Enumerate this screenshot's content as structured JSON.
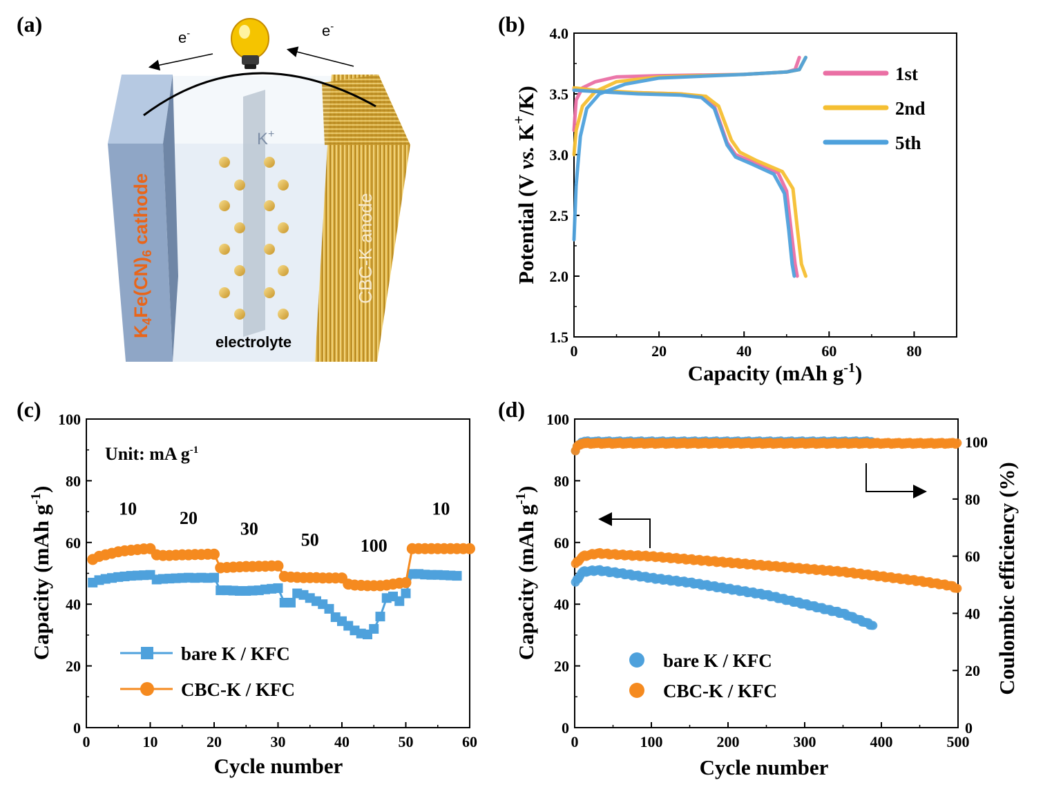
{
  "panel_labels": {
    "a": "(a)",
    "b": "(b)",
    "c": "(c)",
    "d": "(d)"
  },
  "schematic": {
    "electron_left": "e",
    "electron_right": "e",
    "electron_sup": "-",
    "ion_label": "K",
    "ion_sup": "+",
    "cathode_label": "K4Fe(CN)6 cathode",
    "anode_label": "CBC-K anode",
    "electrolyte_label": "electrolyte",
    "colors": {
      "cathode": "#8fa6c6",
      "anode": "#c99a2c",
      "ion": "#e0b64e",
      "label_orange": "#e8651a",
      "bulb": "#f5c400"
    }
  },
  "chart_data": [
    {
      "id": "b",
      "type": "line",
      "xlabel": "Capacity (mAh g-1)",
      "ylabel": "Potential (V vs. K+/K)",
      "xlim": [
        0,
        90
      ],
      "ylim": [
        1.5,
        4.0
      ],
      "xticks": [
        "0",
        "20",
        "40",
        "60",
        "80"
      ],
      "yticks": [
        "1.5",
        "2.0",
        "2.5",
        "3.0",
        "3.5",
        "4.0"
      ],
      "legend": "top-right",
      "series": [
        {
          "name": "1st",
          "color": "#ea6fa4",
          "charge": [
            [
              0,
              3.2
            ],
            [
              0.5,
              3.45
            ],
            [
              2,
              3.55
            ],
            [
              5,
              3.6
            ],
            [
              10,
              3.64
            ],
            [
              20,
              3.65
            ],
            [
              40,
              3.66
            ],
            [
              50,
              3.68
            ],
            [
              52,
              3.7
            ],
            [
              53,
              3.8
            ]
          ],
          "discharge": [
            [
              0,
              3.54
            ],
            [
              5,
              3.52
            ],
            [
              15,
              3.51
            ],
            [
              25,
              3.5
            ],
            [
              30,
              3.48
            ],
            [
              33,
              3.4
            ],
            [
              36,
              3.1
            ],
            [
              38,
              3.0
            ],
            [
              42,
              2.94
            ],
            [
              48,
              2.85
            ],
            [
              50,
              2.7
            ],
            [
              51,
              2.4
            ],
            [
              52,
              2.1
            ],
            [
              52.5,
              2.0
            ]
          ]
        },
        {
          "name": "2nd",
          "color": "#f5bf32",
          "charge": [
            [
              0,
              3.0
            ],
            [
              0.5,
              3.2
            ],
            [
              2,
              3.4
            ],
            [
              5,
              3.52
            ],
            [
              10,
              3.6
            ],
            [
              20,
              3.64
            ],
            [
              40,
              3.66
            ],
            [
              50,
              3.68
            ],
            [
              53,
              3.7
            ],
            [
              54.5,
              3.8
            ]
          ],
          "discharge": [
            [
              0,
              3.55
            ],
            [
              5,
              3.53
            ],
            [
              15,
              3.51
            ],
            [
              25,
              3.5
            ],
            [
              31,
              3.48
            ],
            [
              34,
              3.4
            ],
            [
              37,
              3.12
            ],
            [
              39,
              3.02
            ],
            [
              43,
              2.95
            ],
            [
              49,
              2.86
            ],
            [
              51.5,
              2.72
            ],
            [
              52.5,
              2.4
            ],
            [
              53.5,
              2.1
            ],
            [
              54.5,
              2.0
            ]
          ]
        },
        {
          "name": "5th",
          "color": "#4ea1dc",
          "charge": [
            [
              0,
              2.3
            ],
            [
              0.5,
              2.75
            ],
            [
              1.5,
              3.15
            ],
            [
              3,
              3.38
            ],
            [
              6,
              3.5
            ],
            [
              12,
              3.58
            ],
            [
              20,
              3.63
            ],
            [
              40,
              3.66
            ],
            [
              50,
              3.68
            ],
            [
              53,
              3.7
            ],
            [
              54.5,
              3.8
            ]
          ],
          "discharge": [
            [
              0,
              3.53
            ],
            [
              5,
              3.52
            ],
            [
              15,
              3.5
            ],
            [
              25,
              3.49
            ],
            [
              30,
              3.47
            ],
            [
              33,
              3.38
            ],
            [
              36,
              3.08
            ],
            [
              38,
              2.98
            ],
            [
              42,
              2.92
            ],
            [
              47,
              2.84
            ],
            [
              49.5,
              2.68
            ],
            [
              50.5,
              2.38
            ],
            [
              51.3,
              2.1
            ],
            [
              51.8,
              2.0
            ]
          ]
        }
      ]
    },
    {
      "id": "c",
      "type": "line",
      "xlabel": "Cycle number",
      "ylabel": "Capacity (mAh g-1)",
      "xlim": [
        0,
        60
      ],
      "ylim": [
        0,
        100
      ],
      "xticks": [
        "0",
        "10",
        "20",
        "30",
        "40",
        "50",
        "60"
      ],
      "yticks": [
        "0",
        "20",
        "40",
        "60",
        "80",
        "100"
      ],
      "unit_note": "Unit: mA g-1",
      "rate_labels": [
        {
          "text": "10",
          "x": 6.5,
          "y": 69
        },
        {
          "text": "20",
          "x": 16,
          "y": 66
        },
        {
          "text": "30",
          "x": 25.5,
          "y": 62.5
        },
        {
          "text": "50",
          "x": 35,
          "y": 59
        },
        {
          "text": "100",
          "x": 45,
          "y": 57
        },
        {
          "text": "10",
          "x": 55.5,
          "y": 69
        }
      ],
      "legend": "bottom-left",
      "series": [
        {
          "name": "bare K / KFC",
          "color": "#4ea1dc",
          "marker": "square",
          "x": [
            1,
            2,
            3,
            4,
            5,
            6,
            7,
            8,
            9,
            10,
            11,
            12,
            13,
            14,
            15,
            16,
            17,
            18,
            19,
            20,
            21,
            22,
            23,
            24,
            25,
            26,
            27,
            28,
            29,
            30,
            31,
            32,
            33,
            34,
            35,
            36,
            37,
            38,
            39,
            40,
            41,
            42,
            43,
            44,
            45,
            46,
            47,
            48,
            49,
            50,
            51,
            52,
            53,
            54,
            55,
            56,
            57,
            58
          ],
          "values": [
            47,
            47.8,
            48.2,
            48.5,
            48.8,
            49,
            49.2,
            49.3,
            49.4,
            49.5,
            48,
            48.2,
            48.3,
            48.4,
            48.5,
            48.6,
            48.5,
            48.6,
            48.5,
            48.6,
            44.5,
            44.5,
            44.4,
            44.3,
            44.3,
            44.4,
            44.5,
            44.8,
            45,
            45.2,
            40.5,
            40.5,
            43.5,
            43,
            42,
            41,
            40,
            38.5,
            35.8,
            34.5,
            33,
            31.5,
            30.5,
            30.2,
            32,
            36,
            42,
            42.5,
            41,
            43.5,
            49.8,
            49.8,
            49.6,
            49.5,
            49.5,
            49.4,
            49.3,
            49.2
          ]
        },
        {
          "name": "CBC-K / KFC",
          "color": "#f58a1f",
          "marker": "circle",
          "x": [
            1,
            2,
            3,
            4,
            5,
            6,
            7,
            8,
            9,
            10,
            11,
            12,
            13,
            14,
            15,
            16,
            17,
            18,
            19,
            20,
            21,
            22,
            23,
            24,
            25,
            26,
            27,
            28,
            29,
            30,
            31,
            32,
            33,
            34,
            35,
            36,
            37,
            38,
            39,
            40,
            41,
            42,
            43,
            44,
            45,
            46,
            47,
            48,
            49,
            50,
            51,
            52,
            53,
            54,
            55,
            56,
            57,
            58,
            59,
            60
          ],
          "values": [
            54.5,
            55.5,
            56,
            56.5,
            57,
            57.3,
            57.5,
            57.7,
            57.9,
            58,
            56,
            55.8,
            55.8,
            55.9,
            56,
            56,
            56.1,
            56.1,
            56.2,
            56.2,
            51.8,
            51.9,
            52,
            52.1,
            52.2,
            52.2,
            52.3,
            52.3,
            52.4,
            52.4,
            49,
            48.8,
            48.7,
            48.6,
            48.6,
            48.6,
            48.5,
            48.5,
            48.5,
            48.5,
            46.5,
            46.2,
            46.1,
            46,
            46,
            46,
            46.2,
            46.5,
            46.8,
            47,
            58,
            58,
            58,
            58,
            58,
            58,
            58,
            58,
            58,
            58
          ]
        }
      ]
    },
    {
      "id": "d",
      "type": "scatter",
      "xlabel": "Cycle number",
      "ylabel": "Capacity (mAh g-1)",
      "ylabel_right": "Coulombic efficiency (%)",
      "xlim": [
        0,
        500
      ],
      "ylim": [
        0,
        100
      ],
      "ylim_right": [
        0,
        108
      ],
      "xticks": [
        "0",
        "100",
        "200",
        "300",
        "400",
        "500"
      ],
      "yticks": [
        "0",
        "20",
        "40",
        "60",
        "80",
        "100"
      ],
      "yticks_right": [
        "0",
        "20",
        "40",
        "60",
        "80",
        "100"
      ],
      "legend": "bottom-left",
      "series": [
        {
          "name": "bare K / KFC",
          "color": "#4ea1dc",
          "marker": "circle",
          "capacity_curve": [
            [
              1,
              47
            ],
            [
              10,
              50.5
            ],
            [
              30,
              51
            ],
            [
              60,
              50
            ],
            [
              100,
              48.5
            ],
            [
              150,
              47
            ],
            [
              200,
              45
            ],
            [
              250,
              43
            ],
            [
              300,
              40
            ],
            [
              350,
              37
            ],
            [
              390,
              33
            ]
          ],
          "ce_curve": [
            [
              1,
              97
            ],
            [
              5,
              99
            ],
            [
              10,
              100
            ],
            [
              390,
              100
            ]
          ]
        },
        {
          "name": "CBC-K / KFC",
          "color": "#f58a1f",
          "marker": "circle",
          "capacity_curve": [
            [
              1,
              53
            ],
            [
              10,
              55.5
            ],
            [
              30,
              56.5
            ],
            [
              60,
              56
            ],
            [
              100,
              55.5
            ],
            [
              150,
              54.5
            ],
            [
              200,
              53.5
            ],
            [
              250,
              52.5
            ],
            [
              300,
              51.5
            ],
            [
              350,
              50.5
            ],
            [
              400,
              49
            ],
            [
              450,
              47.5
            ],
            [
              490,
              46
            ],
            [
              500,
              45
            ]
          ],
          "ce_curve": [
            [
              1,
              97
            ],
            [
              5,
              99
            ],
            [
              10,
              99.5
            ],
            [
              500,
              99.5
            ]
          ]
        }
      ]
    }
  ]
}
